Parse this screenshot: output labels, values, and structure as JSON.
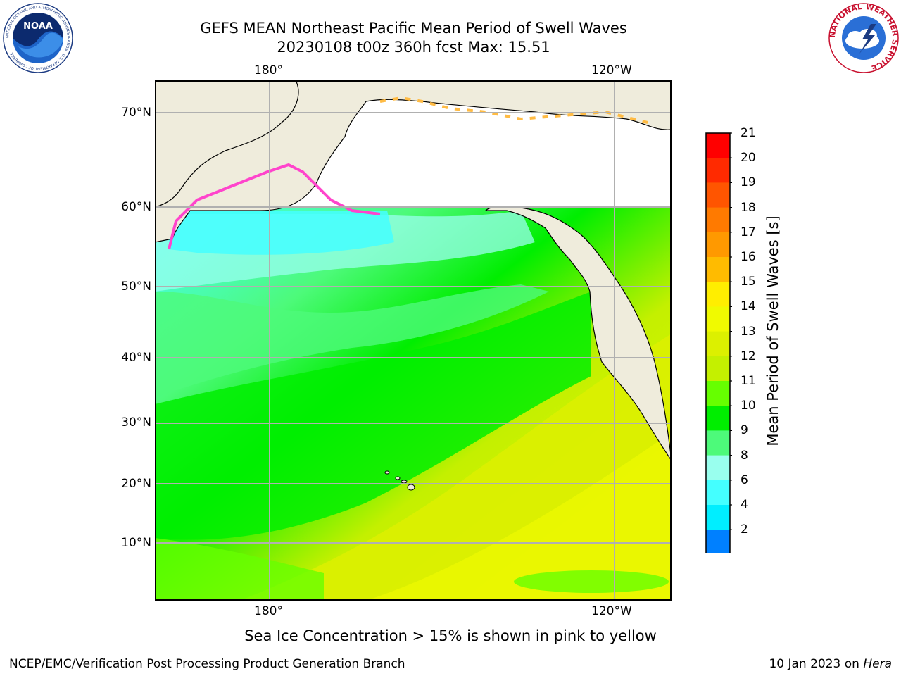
{
  "title": {
    "line1": "GEFS MEAN Northeast Pacific Mean Period of Swell Waves",
    "line2": "20230108 t00z 360h fcst   Max: 15.51"
  },
  "map": {
    "lon_labels_top": [
      "180°",
      "120°W"
    ],
    "lon_labels_bottom": [
      "180°",
      "120°W"
    ],
    "lat_labels": [
      "70°N",
      "60°N",
      "50°N",
      "40°N",
      "30°N",
      "20°N",
      "10°N"
    ],
    "land_color": "#efecdc",
    "grid_color": "#b0b0b0"
  },
  "colorbar": {
    "title": "Mean Period of Swell Waves [s]",
    "ticks": [
      "21",
      "20",
      "19",
      "18",
      "17",
      "16",
      "15",
      "14",
      "13",
      "12",
      "11",
      "10",
      "9",
      "8",
      "6",
      "4",
      "2"
    ],
    "colors_top_to_bottom": [
      "#ff0000",
      "#ff2a00",
      "#ff5500",
      "#ff7a00",
      "#ff9900",
      "#ffbb00",
      "#ffee00",
      "#f0fa00",
      "#dcf000",
      "#c4f000",
      "#66ff00",
      "#00ee00",
      "#4dfa7a",
      "#99ffee",
      "#44ffff",
      "#00eeff",
      "#0080ff"
    ],
    "extend_color": "#0000ee"
  },
  "logos": {
    "noaa_text": "NOAA",
    "noaa_ring": "NATIONAL OCEANIC AND ATMOSPHERIC ADMINISTRATION · U.S. DEPARTMENT OF COMMERCE",
    "nws_ring": "NATIONAL WEATHER SERVICE"
  },
  "note": "Sea Ice Concentration > 15% is shown in pink to yellow",
  "footer": {
    "left": "NCEP/EMC/Verification Post Processing Product Generation Branch",
    "right_prefix": "10 Jan 2023 on ",
    "right_host": "Hera"
  }
}
